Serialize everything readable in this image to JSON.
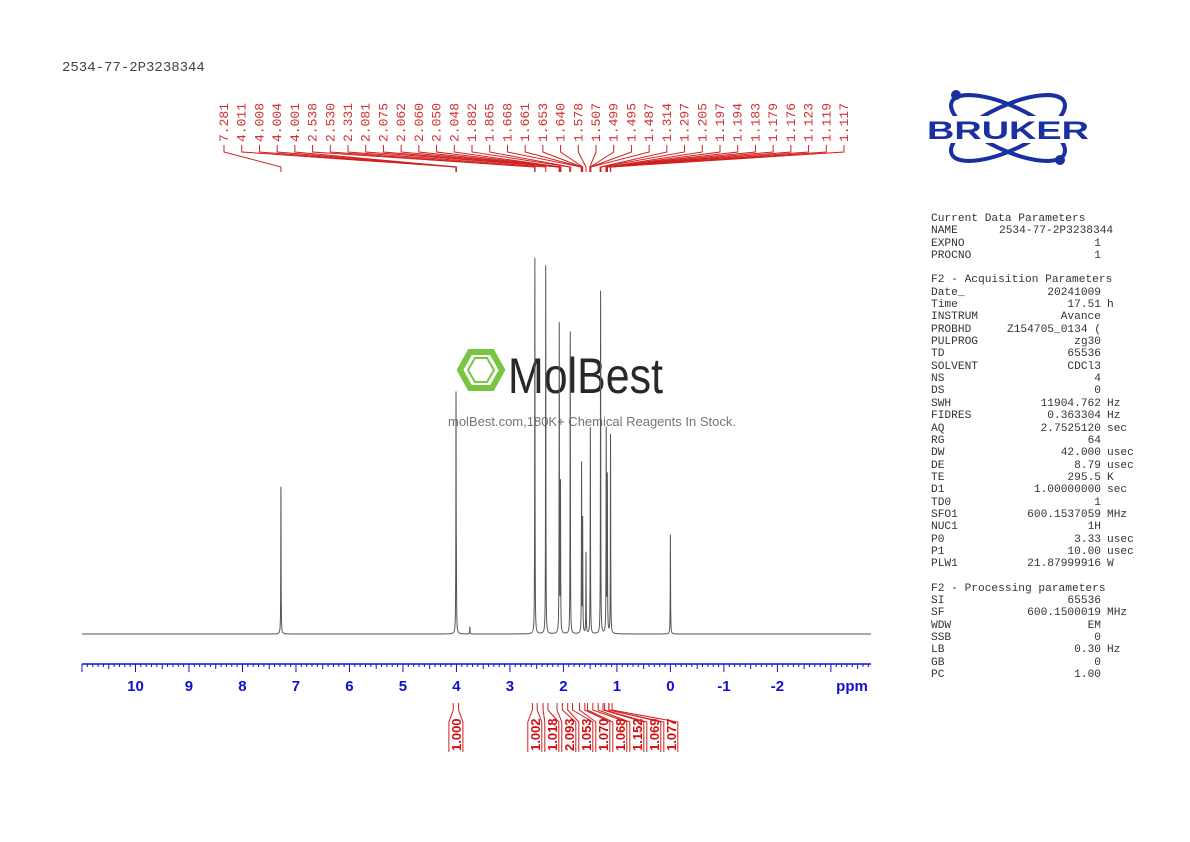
{
  "title": "2534-77-2P3238344",
  "logo": {
    "text": "BRUKER",
    "color": "#1a2fa0"
  },
  "watermark": {
    "brand": "MolBest",
    "tagline": "molBest.com,180K+ Chemical Reagents In Stock.",
    "color": "#6abf2e"
  },
  "parameters": [
    {
      "heading": "Current Data Parameters",
      "rows": [
        [
          "NAME",
          "2534-77-2P3238344",
          ""
        ],
        [
          "EXPNO",
          "1",
          ""
        ],
        [
          "PROCNO",
          "1",
          ""
        ]
      ]
    },
    {
      "heading": "F2 - Acquisition Parameters",
      "rows": [
        [
          "Date_",
          "20241009",
          ""
        ],
        [
          "Time",
          "17.51",
          "h"
        ],
        [
          "INSTRUM",
          "Avance",
          ""
        ],
        [
          "PROBHD",
          "Z154705_0134 (",
          ""
        ],
        [
          "PULPROG",
          "zg30",
          ""
        ],
        [
          "TD",
          "65536",
          ""
        ],
        [
          "SOLVENT",
          "CDCl3",
          ""
        ],
        [
          "NS",
          "4",
          ""
        ],
        [
          "DS",
          "0",
          ""
        ],
        [
          "SWH",
          "11904.762",
          "Hz"
        ],
        [
          "FIDRES",
          "0.363304",
          "Hz"
        ],
        [
          "AQ",
          "2.7525120",
          "sec"
        ],
        [
          "RG",
          "64",
          ""
        ],
        [
          "DW",
          "42.000",
          "usec"
        ],
        [
          "DE",
          "8.79",
          "usec"
        ],
        [
          "TE",
          "295.5",
          "K"
        ],
        [
          "D1",
          "1.00000000",
          "sec"
        ],
        [
          "TD0",
          "1",
          ""
        ],
        [
          "SFO1",
          "600.1537059",
          "MHz"
        ],
        [
          "NUC1",
          "1H",
          ""
        ],
        [
          "P0",
          "3.33",
          "usec"
        ],
        [
          "P1",
          "10.00",
          "usec"
        ],
        [
          "PLW1",
          "21.87999916",
          "W"
        ]
      ]
    },
    {
      "heading": "F2 - Processing parameters",
      "rows": [
        [
          "SI",
          "65536",
          ""
        ],
        [
          "SF",
          "600.1500019",
          "MHz"
        ],
        [
          "WDW",
          "EM",
          ""
        ],
        [
          "SSB",
          "0",
          ""
        ],
        [
          "LB",
          "0.30",
          "Hz"
        ],
        [
          "GB",
          "0",
          ""
        ],
        [
          "PC",
          "1.00",
          ""
        ]
      ]
    }
  ],
  "chart_data": {
    "type": "line",
    "xlabel": "ppm",
    "xlim": [
      11.0,
      -3.75
    ],
    "x_reversed": true,
    "x_ticks": [
      "10",
      "9",
      "8",
      "7",
      "6",
      "5",
      "4",
      "3",
      "2",
      "1",
      "0",
      "-1",
      "-2"
    ],
    "trace_color": "#555555",
    "annotation_color": "#d02020",
    "axis_color": "#1010d0",
    "peaks": [
      {
        "ppm": 7.281,
        "height": 0.4
      },
      {
        "ppm": 4.008,
        "height": 0.64
      },
      {
        "ppm": 4.001,
        "height": 0.1
      },
      {
        "ppm": 3.75,
        "height": 0.02
      },
      {
        "ppm": 2.534,
        "height": 1.0
      },
      {
        "ppm": 2.331,
        "height": 1.0
      },
      {
        "ppm": 2.078,
        "height": 0.82
      },
      {
        "ppm": 2.055,
        "height": 0.4
      },
      {
        "ppm": 1.873,
        "height": 0.82
      },
      {
        "ppm": 1.661,
        "height": 0.45
      },
      {
        "ppm": 1.64,
        "height": 0.3
      },
      {
        "ppm": 1.578,
        "height": 0.22
      },
      {
        "ppm": 1.497,
        "height": 0.56
      },
      {
        "ppm": 1.305,
        "height": 0.93
      },
      {
        "ppm": 1.2,
        "height": 0.55
      },
      {
        "ppm": 1.179,
        "height": 0.42
      },
      {
        "ppm": 1.119,
        "height": 0.54
      },
      {
        "ppm": 0.0,
        "height": 0.27
      }
    ],
    "peak_labels": [
      "7.281",
      "4.011",
      "4.008",
      "4.004",
      "4.001",
      "2.538",
      "2.530",
      "2.331",
      "2.081",
      "2.075",
      "2.062",
      "2.060",
      "2.050",
      "2.048",
      "1.882",
      "1.865",
      "1.668",
      "1.661",
      "1.653",
      "1.640",
      "1.578",
      "1.507",
      "1.499",
      "1.495",
      "1.487",
      "1.314",
      "1.297",
      "1.205",
      "1.197",
      "1.194",
      "1.183",
      "1.179",
      "1.176",
      "1.123",
      "1.119",
      "1.117"
    ],
    "integrals": [
      {
        "from": 4.06,
        "to": 3.96,
        "value": "1.000"
      },
      {
        "from": 2.58,
        "to": 2.49,
        "value": "1.002"
      },
      {
        "from": 2.38,
        "to": 2.29,
        "value": "1.018"
      },
      {
        "from": 2.12,
        "to": 2.02,
        "value": "2.093"
      },
      {
        "from": 1.92,
        "to": 1.83,
        "value": "1.053"
      },
      {
        "from": 1.7,
        "to": 1.6,
        "value": "1.070"
      },
      {
        "from": 1.55,
        "to": 1.45,
        "value": "1.068"
      },
      {
        "from": 1.35,
        "to": 1.26,
        "value": "1.152"
      },
      {
        "from": 1.23,
        "to": 1.15,
        "value": "1.069"
      },
      {
        "from": 1.15,
        "to": 1.09,
        "value": "1.077"
      }
    ]
  }
}
